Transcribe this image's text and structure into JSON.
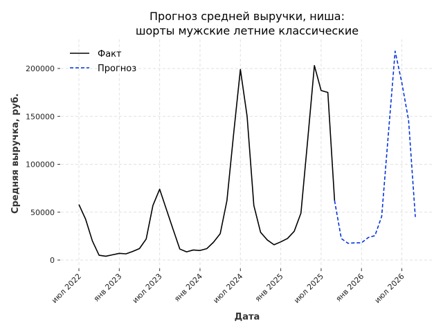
{
  "chart_data": {
    "type": "line",
    "title_line1": "Прогноз средней выручки, ниша:",
    "title_line2": "шорты мужские летние классические",
    "xlabel": "Дата",
    "ylabel": "Средняя выручка, руб.",
    "ylim": [
      -8000,
      230000
    ],
    "yticks": [
      0,
      50000,
      100000,
      150000,
      200000
    ],
    "ytick_labels": [
      "0",
      "50000",
      "100000",
      "150000",
      "200000"
    ],
    "xtick_labels": [
      "июл 2022",
      "янв 2023",
      "июл 2023",
      "янв 2024",
      "июл 2024",
      "янв 2025",
      "июл 2025",
      "янв 2026",
      "июл 2026"
    ],
    "grid": true,
    "legend_position": "top-left",
    "series": [
      {
        "name": "Факт",
        "color": "#000000",
        "style": "solid",
        "start_month": "2022-07",
        "values": [
          58000,
          42600,
          20000,
          5000,
          4000,
          5500,
          7000,
          6500,
          9000,
          12000,
          22000,
          57000,
          74000,
          53000,
          32000,
          11500,
          8600,
          10500,
          10000,
          11900,
          18600,
          27500,
          62000,
          132000,
          199000,
          150000,
          57000,
          29000,
          21000,
          16000,
          19000,
          22500,
          30000,
          49000,
          125000,
          203000,
          177000,
          175000,
          62000
        ]
      },
      {
        "name": "Прогноз",
        "color": "#0033dd",
        "style": "dashed",
        "start_month": "2025-09",
        "values": [
          62000,
          22500,
          17500,
          18000,
          18000,
          23500,
          25500,
          45500,
          132000,
          218000,
          185000,
          146000,
          45000
        ]
      }
    ]
  }
}
